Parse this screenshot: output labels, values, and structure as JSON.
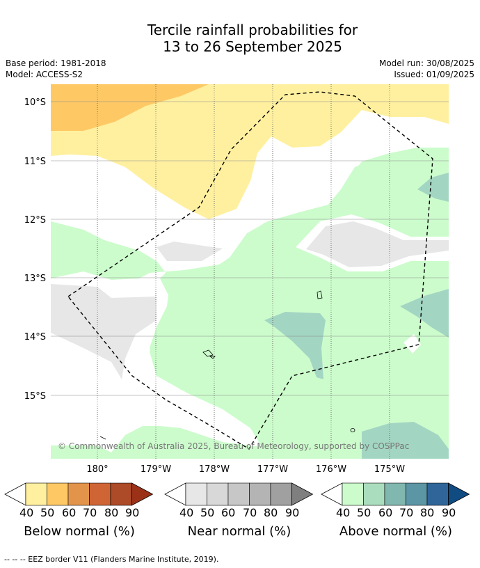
{
  "title_line1": "Tercile rainfall probabilities for",
  "title_line2": "13 to 26 September 2025",
  "base_period": "Base period: 1981-2018",
  "model": "Model: ACCESS-S2",
  "model_run": "Model run: 30/08/2025",
  "issued": "Issued: 01/09/2025",
  "y_ticks": [
    "10°S",
    "11°S",
    "12°S",
    "13°S",
    "14°S",
    "15°S"
  ],
  "x_ticks": [
    "180°",
    "179°W",
    "178°W",
    "177°W",
    "176°W",
    "175°W"
  ],
  "copyright": "© Commonwealth of Australia 2025, Bureau of Meteorology, supported by COSPPac",
  "colorbars": [
    {
      "title": "Below normal (%)",
      "ticks": [
        "40",
        "50",
        "60",
        "70",
        "80",
        "90"
      ],
      "colors": [
        "#fff0a0",
        "#fec965",
        "#e3944b",
        "#cf6535",
        "#ad4a28",
        "#9b3218"
      ]
    },
    {
      "title": "Near normal (%)",
      "ticks": [
        "40",
        "50",
        "60",
        "70",
        "80",
        "90"
      ],
      "colors": [
        "#e7e7e7",
        "#d8d8d8",
        "#c7c7c7",
        "#b4b4b4",
        "#a0a0a0",
        "#7f7f7f"
      ]
    },
    {
      "title": "Above normal (%)",
      "ticks": [
        "40",
        "50",
        "60",
        "70",
        "80",
        "90"
      ],
      "colors": [
        "#ccfccc",
        "#aaddbd",
        "#80b8b0",
        "#5c95a4",
        "#2f6599",
        "#104b82"
      ]
    }
  ],
  "footnote": "--  --  -- EEZ border V11 (Flanders Marine Institute, 2019).",
  "map_colors": {
    "below_40": "#fff0a0",
    "below_50": "#fec965",
    "near_40": "#e7e7e7",
    "above_40": "#ccfccc",
    "above_50": "#a3d6c2"
  }
}
